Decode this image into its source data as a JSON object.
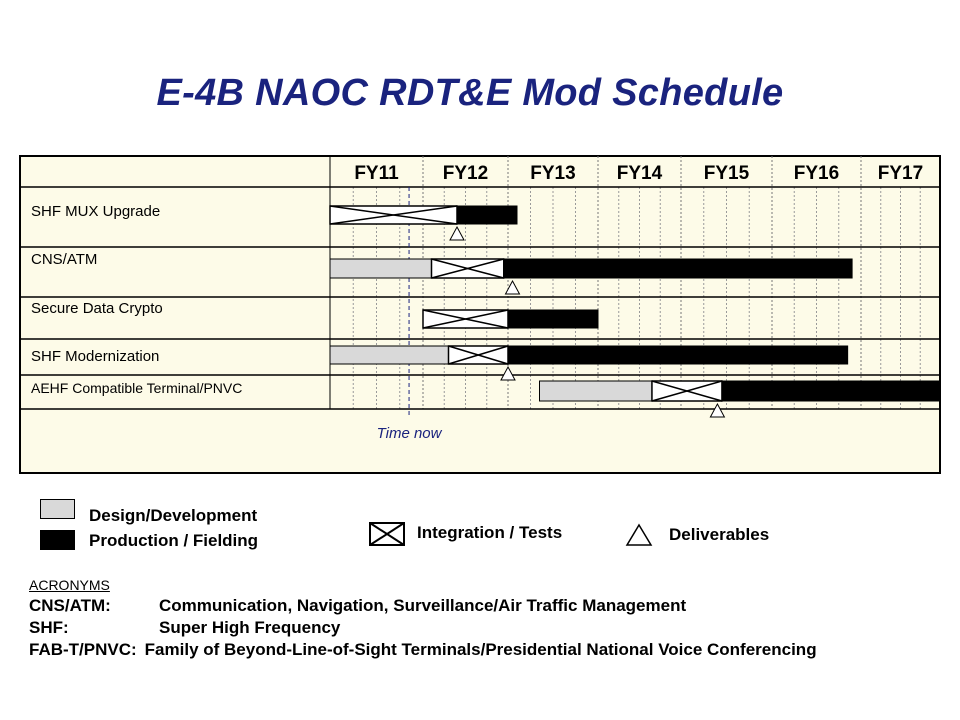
{
  "title": "E-4B NAOC RDT&E Mod Schedule",
  "chart_data": {
    "type": "gantt",
    "fiscal_years": [
      "FY11",
      "FY12",
      "FY13",
      "FY14",
      "FY15",
      "FY16",
      "FY17"
    ],
    "time_now": {
      "label": "Time now",
      "fy": 11.85
    },
    "rows": [
      {
        "name": "SHF MUX Upgrade",
        "segments": [
          {
            "type": "integration",
            "start": 11.0,
            "end": 12.4
          },
          {
            "type": "production",
            "start": 12.4,
            "end": 13.1
          }
        ],
        "deliverables": [
          12.4
        ]
      },
      {
        "name": "CNS/ATM",
        "segments": [
          {
            "type": "design",
            "start": 11.0,
            "end": 12.1
          },
          {
            "type": "integration",
            "start": 12.1,
            "end": 12.95
          },
          {
            "type": "production",
            "start": 12.95,
            "end": 16.9
          }
        ],
        "deliverables": [
          13.05
        ]
      },
      {
        "name": "Secure Data Crypto",
        "segments": [
          {
            "type": "integration",
            "start": 12.0,
            "end": 13.0
          },
          {
            "type": "production",
            "start": 13.0,
            "end": 14.0
          }
        ],
        "deliverables": []
      },
      {
        "name": "SHF Modernization",
        "segments": [
          {
            "type": "design",
            "start": 11.0,
            "end": 12.3
          },
          {
            "type": "integration",
            "start": 12.3,
            "end": 13.0
          },
          {
            "type": "production",
            "start": 13.0,
            "end": 16.85
          }
        ],
        "deliverables": [
          13.0
        ]
      },
      {
        "name": "AEHF Compatible Terminal/PNVC",
        "segments": [
          {
            "type": "design",
            "start": 13.35,
            "end": 14.65
          },
          {
            "type": "integration",
            "start": 14.65,
            "end": 15.45
          },
          {
            "type": "production",
            "start": 15.45,
            "end": 18.0
          }
        ],
        "deliverables": [
          15.4
        ]
      }
    ]
  },
  "legend": {
    "design": "Design/Development",
    "production": "Production / Fielding",
    "integration": "Integration / Tests",
    "deliverables": "Deliverables"
  },
  "acronyms": {
    "heading": "ACRONYMS",
    "items": [
      {
        "term": "CNS/ATM:",
        "definition": "Communication, Navigation, Surveillance/Air Traffic Management"
      },
      {
        "term": "SHF:",
        "definition": "Super High Frequency"
      },
      {
        "term": "FAB-T/PNVC:",
        "definition": "Family of Beyond-Line-of-Sight Terminals/Presidential National Voice Conferencing"
      }
    ]
  },
  "colors": {
    "chart_background": "#fdfbe8",
    "design_fill": "#d9d9d9",
    "production_fill": "#000000",
    "integration_fill": "#ffffff",
    "time_now": "#1a237e",
    "title": "#1a237e"
  }
}
